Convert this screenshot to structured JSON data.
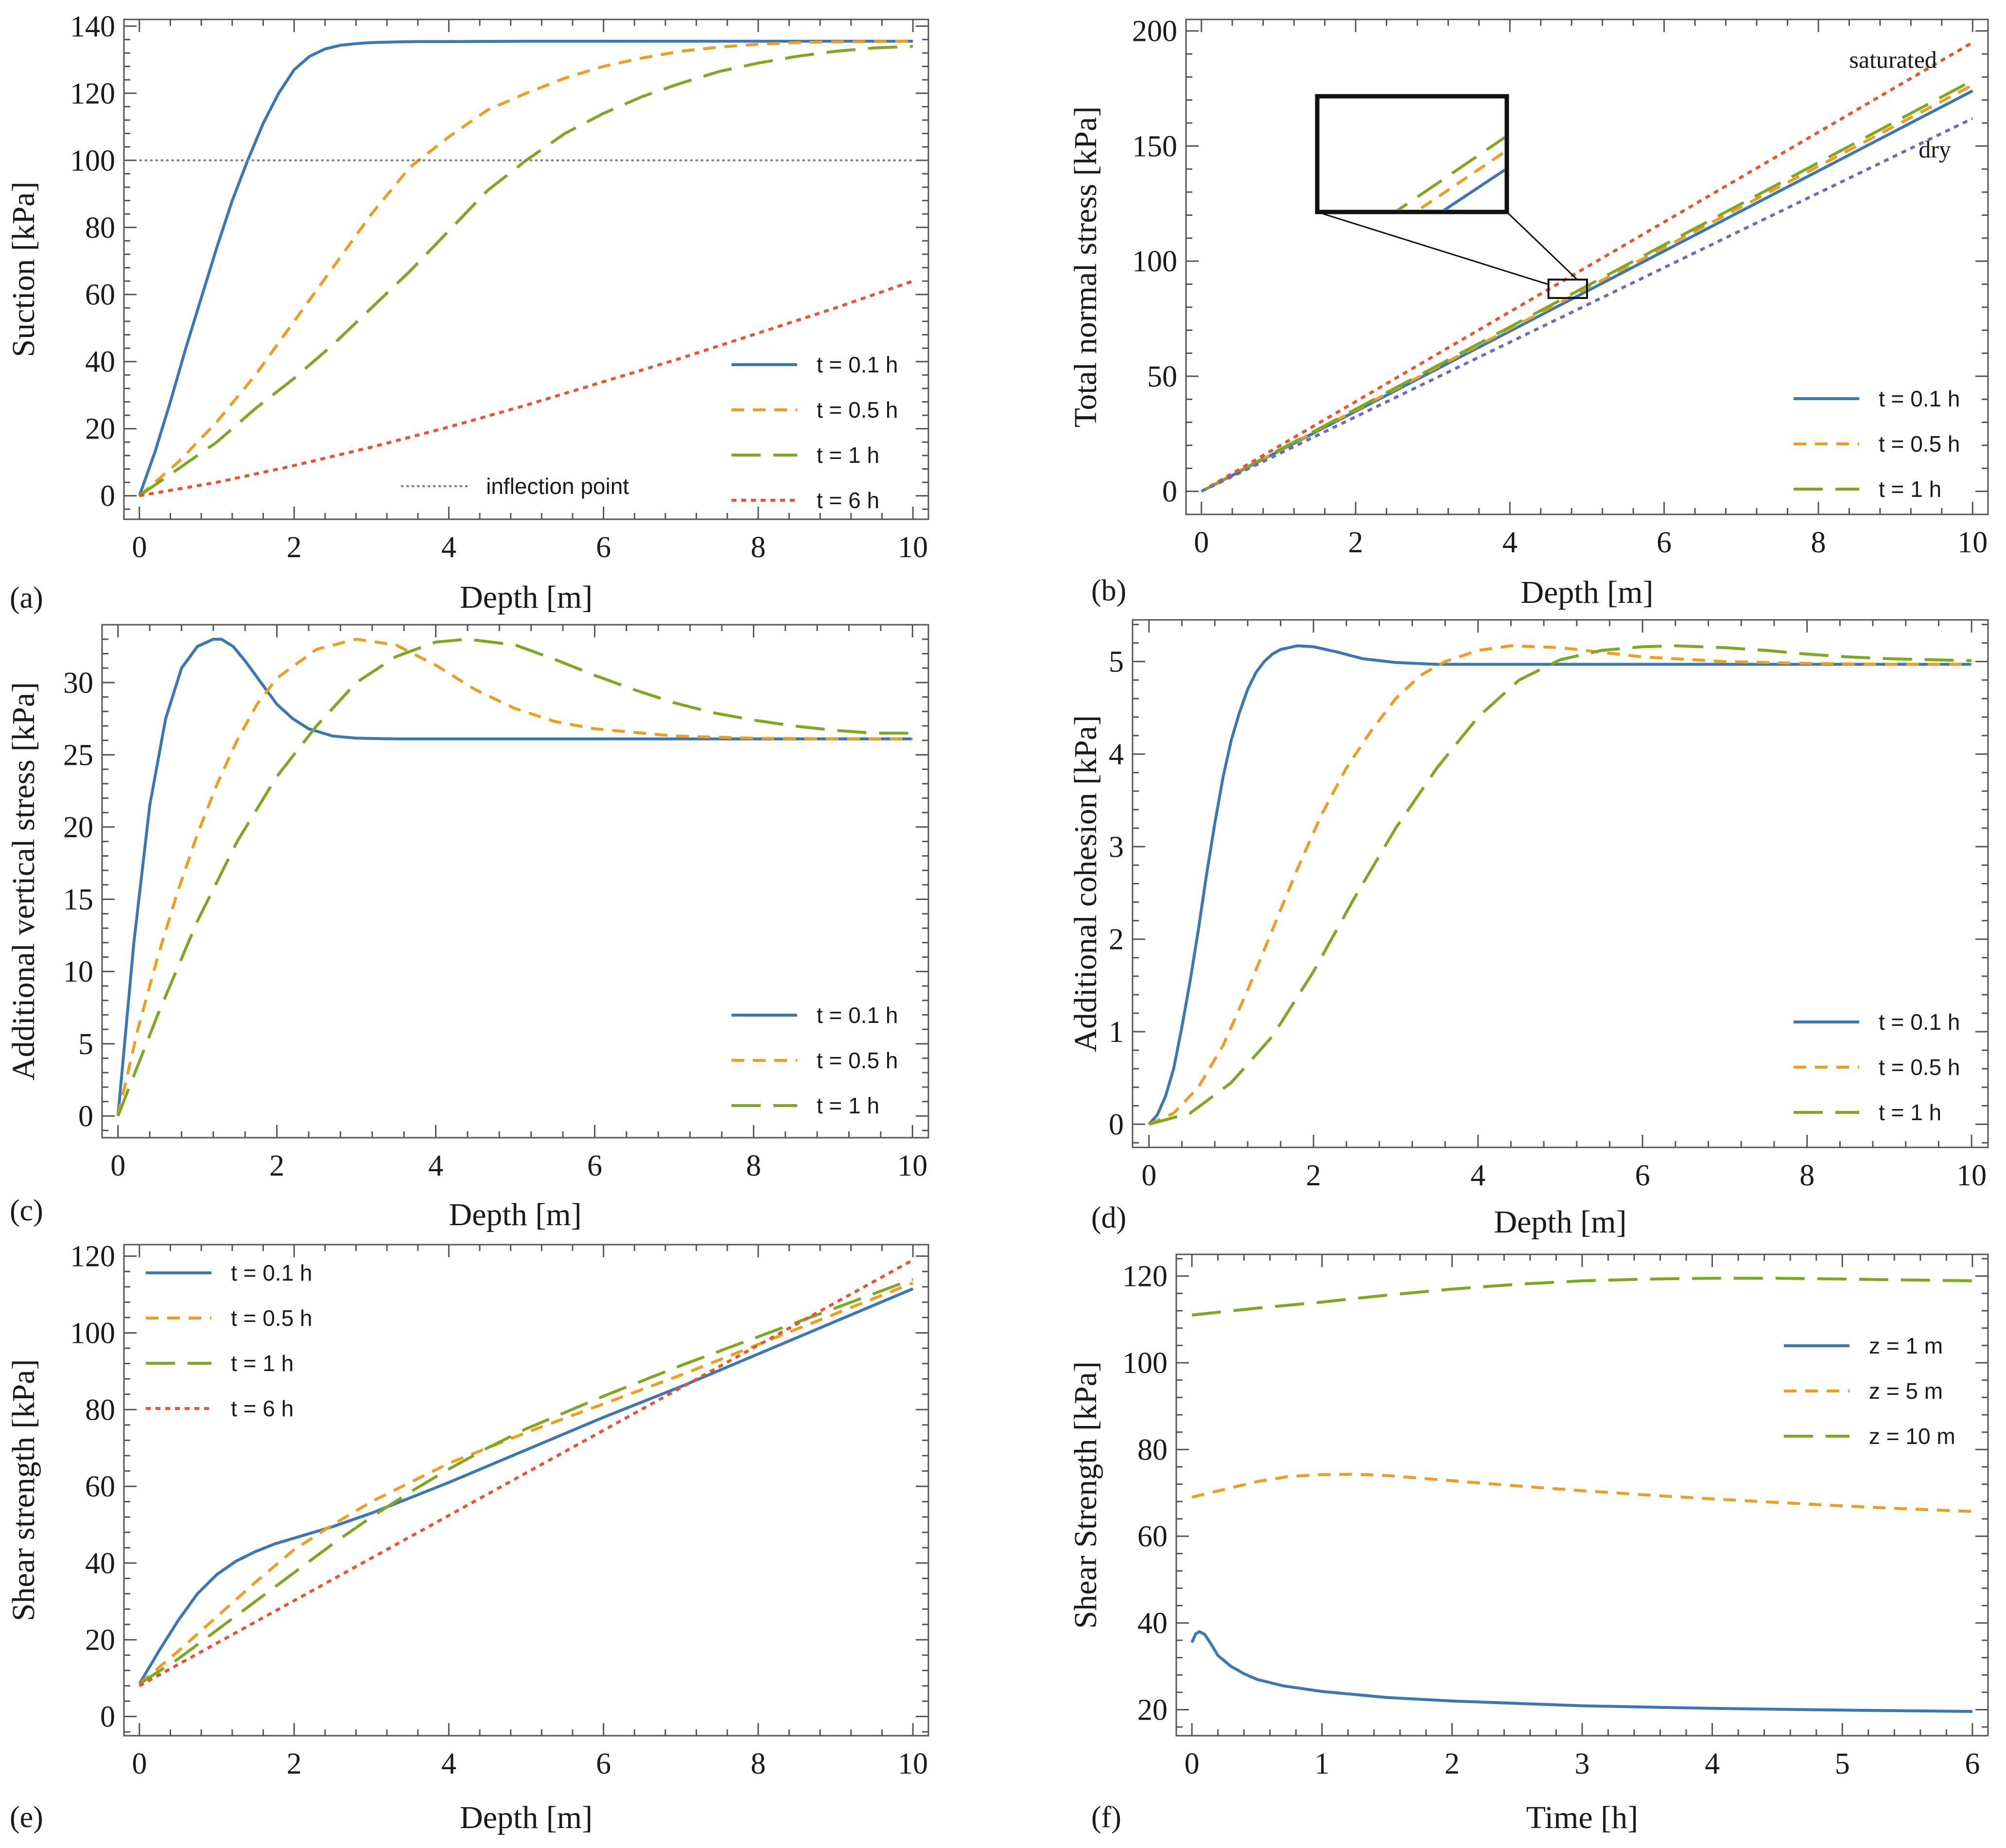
{
  "colors": {
    "blue": "#3a78b5",
    "orange": "#ef9d1e",
    "green": "#7ea81f",
    "red": "#f0502a",
    "gray": "#7b7b7b",
    "purple": "#6a6ac6"
  },
  "chart_data": [
    {
      "type": "line",
      "panel_label": "(a)",
      "xlabel": "Depth [m]",
      "ylabel": "Suction [kPa]",
      "xlim": [
        -0.2,
        10.2
      ],
      "ylim": [
        -7,
        142
      ],
      "xticks": [
        0,
        2,
        4,
        6,
        8,
        10
      ],
      "yticks": [
        0,
        20,
        40,
        60,
        80,
        100,
        120,
        140
      ],
      "legend_position": "bottom-right",
      "series": [
        {
          "name": "t = 0.1 h",
          "style": "solid",
          "color_key": "blue",
          "x": [
            0,
            0.2,
            0.4,
            0.6,
            0.8,
            1.0,
            1.2,
            1.4,
            1.6,
            1.8,
            2.0,
            2.2,
            2.4,
            2.6,
            2.8,
            3.0,
            3.3,
            3.6,
            4.0,
            5,
            6,
            7,
            8,
            9,
            10
          ],
          "y": [
            0,
            13,
            28,
            44,
            59,
            74,
            88,
            100,
            111,
            120,
            127,
            131,
            133.2,
            134.3,
            134.8,
            135.1,
            135.3,
            135.4,
            135.4,
            135.5,
            135.5,
            135.5,
            135.5,
            135.5,
            135.5
          ]
        },
        {
          "name": "t = 0.5 h",
          "style": "dash",
          "color_key": "orange",
          "x": [
            0,
            0.5,
            1.0,
            1.5,
            2.0,
            2.5,
            3.0,
            3.5,
            4.0,
            4.5,
            5.0,
            5.5,
            6.0,
            6.5,
            7.0,
            7.5,
            8.0,
            8.5,
            9.0,
            9.5,
            10
          ],
          "y": [
            0,
            10,
            22,
            36,
            52,
            68,
            84,
            98,
            107,
            115,
            120,
            124.5,
            128,
            130.5,
            132.5,
            133.8,
            134.6,
            135.1,
            135.3,
            135.4,
            135.5
          ]
        },
        {
          "name": "t = 1 h",
          "style": "longdash",
          "color_key": "green",
          "x": [
            0,
            0.5,
            1.0,
            1.5,
            2.0,
            2.5,
            3.0,
            3.5,
            4.0,
            4.5,
            5.0,
            5.5,
            6.0,
            6.5,
            7.0,
            7.5,
            8.0,
            8.5,
            9.0,
            9.5,
            10
          ],
          "y": [
            0,
            8,
            16,
            26,
            35,
            45,
            56,
            67,
            79,
            91,
            100,
            108,
            114,
            119,
            123,
            126.5,
            129,
            131,
            132.5,
            133.5,
            134
          ]
        },
        {
          "name": "t = 6 h",
          "style": "dot",
          "color_key": "red",
          "x": [
            0,
            1,
            2,
            3,
            4,
            5,
            6,
            7,
            8,
            9,
            10
          ],
          "y": [
            0,
            4,
            9,
            14.5,
            20.5,
            27,
            34,
            41,
            48.5,
            56,
            64
          ]
        },
        {
          "name": "inflection point",
          "style": "dotted-gray",
          "color_key": "gray",
          "x": [
            0,
            10
          ],
          "y": [
            100,
            100
          ]
        }
      ]
    },
    {
      "type": "line",
      "panel_label": "(b)",
      "xlabel": "Depth [m]",
      "ylabel": "Total normal stress [kPa]",
      "xlim": [
        -0.2,
        10.2
      ],
      "ylim": [
        -10,
        205
      ],
      "xticks": [
        0,
        2,
        4,
        6,
        8,
        10
      ],
      "yticks": [
        0,
        50,
        100,
        150,
        200
      ],
      "legend_position": "bottom-right",
      "annotations": [
        {
          "text": "saturated",
          "x": 8.4,
          "y": 184
        },
        {
          "text": "dry",
          "x": 9.3,
          "y": 145
        }
      ],
      "inset": {
        "x_range": [
          4.5,
          5.0
        ],
        "y_range": [
          84,
          92
        ]
      },
      "series": [
        {
          "name": "t = 0.1 h",
          "style": "solid",
          "color_key": "blue",
          "x": [
            0,
            10
          ],
          "y": [
            0,
            174
          ]
        },
        {
          "name": "t = 0.5 h",
          "style": "dash",
          "color_key": "orange",
          "x": [
            0,
            10
          ],
          "y": [
            0,
            176.5
          ]
        },
        {
          "name": "t = 1 h",
          "style": "longdash",
          "color_key": "green",
          "x": [
            0,
            10
          ],
          "y": [
            0,
            178.5
          ]
        },
        {
          "name": "saturated",
          "style": "dot",
          "color_key": "red",
          "x": [
            0,
            10
          ],
          "y": [
            0,
            195
          ]
        },
        {
          "name": "dry",
          "style": "dot",
          "color_key": "purple",
          "x": [
            0,
            10
          ],
          "y": [
            0,
            162
          ]
        }
      ]
    },
    {
      "type": "line",
      "panel_label": "(c)",
      "xlabel": "Depth [m]",
      "ylabel": "Additional vertical stress [kPa]",
      "xlim": [
        -0.2,
        10.2
      ],
      "ylim": [
        -1.5,
        34
      ],
      "xticks": [
        0,
        2,
        4,
        6,
        8,
        10
      ],
      "yticks": [
        0,
        5,
        10,
        15,
        20,
        25,
        30
      ],
      "legend_position": "bottom-right",
      "series": [
        {
          "name": "t = 0.1 h",
          "style": "solid",
          "color_key": "blue",
          "x": [
            0,
            0.2,
            0.4,
            0.6,
            0.8,
            1.0,
            1.2,
            1.3,
            1.45,
            1.6,
            1.8,
            2.0,
            2.2,
            2.4,
            2.7,
            3.0,
            3.5,
            4,
            5,
            6,
            7,
            8,
            9,
            10
          ],
          "y": [
            0,
            12,
            21.5,
            27.5,
            31,
            32.5,
            33,
            33,
            32.5,
            31.5,
            30,
            28.5,
            27.5,
            26.8,
            26.3,
            26.15,
            26.1,
            26.1,
            26.1,
            26.1,
            26.1,
            26.1,
            26.1,
            26.1
          ]
        },
        {
          "name": "t = 0.5 h",
          "style": "dash",
          "color_key": "orange",
          "x": [
            0,
            0.25,
            0.5,
            0.75,
            1.0,
            1.25,
            1.5,
            1.75,
            2.0,
            2.5,
            3.0,
            3.5,
            4.0,
            4.5,
            5.0,
            5.5,
            6.0,
            7.0,
            8.0,
            9.0,
            10
          ],
          "y": [
            0,
            6,
            11,
            15.5,
            19.5,
            23,
            26,
            28.5,
            30.3,
            32.3,
            33,
            32.6,
            31.2,
            29.5,
            28.2,
            27.3,
            26.8,
            26.3,
            26.15,
            26.1,
            26.1
          ]
        },
        {
          "name": "t = 1 h",
          "style": "longdash",
          "color_key": "green",
          "x": [
            0,
            0.5,
            1.0,
            1.5,
            2.0,
            2.5,
            3.0,
            3.5,
            4.0,
            4.4,
            5.0,
            5.5,
            6.0,
            6.5,
            7.0,
            7.5,
            8.0,
            8.5,
            9.0,
            9.5,
            10
          ],
          "y": [
            0,
            7,
            13.5,
            19,
            23.5,
            27,
            30,
            31.8,
            32.8,
            33,
            32.6,
            31.6,
            30.5,
            29.5,
            28.6,
            27.9,
            27.4,
            27,
            26.7,
            26.5,
            26.5
          ]
        }
      ]
    },
    {
      "type": "line",
      "panel_label": "(d)",
      "xlabel": "Depth [m]",
      "ylabel": "Additional cohesion [kPa]",
      "xlim": [
        -0.2,
        10.2
      ],
      "ylim": [
        -0.25,
        5.45
      ],
      "xticks": [
        0,
        2,
        4,
        6,
        8,
        10
      ],
      "yticks": [
        0,
        1,
        2,
        3,
        4,
        5
      ],
      "legend_position": "bottom-right",
      "series": [
        {
          "name": "t = 0.1 h",
          "style": "solid",
          "color_key": "blue",
          "x": [
            0,
            0.1,
            0.2,
            0.3,
            0.4,
            0.5,
            0.6,
            0.7,
            0.8,
            0.9,
            1.0,
            1.1,
            1.2,
            1.3,
            1.4,
            1.5,
            1.6,
            1.8,
            2.0,
            2.3,
            2.6,
            3.0,
            3.5,
            4,
            5,
            6,
            7,
            8,
            9,
            10
          ],
          "y": [
            0,
            0.1,
            0.3,
            0.6,
            1.05,
            1.55,
            2.1,
            2.7,
            3.25,
            3.75,
            4.15,
            4.45,
            4.7,
            4.88,
            5.0,
            5.08,
            5.13,
            5.17,
            5.16,
            5.1,
            5.03,
            4.99,
            4.97,
            4.97,
            4.97,
            4.97,
            4.97,
            4.97,
            4.97,
            4.97
          ]
        },
        {
          "name": "t = 0.5 h",
          "style": "dash",
          "color_key": "orange",
          "x": [
            0,
            0.3,
            0.6,
            0.9,
            1.2,
            1.5,
            1.8,
            2.1,
            2.4,
            2.7,
            3.0,
            3.3,
            3.6,
            4.0,
            4.4,
            5.0,
            5.5,
            6.0,
            7.0,
            8.0,
            9.0,
            10
          ],
          "y": [
            0,
            0.12,
            0.4,
            0.85,
            1.45,
            2.1,
            2.75,
            3.35,
            3.85,
            4.25,
            4.6,
            4.85,
            5.0,
            5.12,
            5.17,
            5.15,
            5.1,
            5.05,
            5.0,
            4.98,
            4.97,
            4.97
          ]
        },
        {
          "name": "t = 1 h",
          "style": "longdash",
          "color_key": "green",
          "x": [
            0,
            0.5,
            1.0,
            1.5,
            2.0,
            2.5,
            3.0,
            3.5,
            4.0,
            4.5,
            5.0,
            5.5,
            6.0,
            6.4,
            7.0,
            7.5,
            8.0,
            8.5,
            9.0,
            9.5,
            10
          ],
          "y": [
            0,
            0.12,
            0.45,
            0.95,
            1.65,
            2.45,
            3.2,
            3.85,
            4.4,
            4.8,
            5.02,
            5.12,
            5.16,
            5.17,
            5.15,
            5.12,
            5.08,
            5.05,
            5.03,
            5.02,
            5.01
          ]
        }
      ]
    },
    {
      "type": "line",
      "panel_label": "(e)",
      "xlabel": "Depth [m]",
      "ylabel": "Shear strength [kPa]",
      "xlim": [
        -0.2,
        10.2
      ],
      "ylim": [
        -5,
        123
      ],
      "xticks": [
        0,
        2,
        4,
        6,
        8,
        10
      ],
      "yticks": [
        0,
        20,
        40,
        60,
        80,
        100,
        120
      ],
      "legend_position": "top-left",
      "series": [
        {
          "name": "t = 0.1 h",
          "style": "solid",
          "color_key": "blue",
          "x": [
            0,
            0.25,
            0.5,
            0.75,
            1.0,
            1.25,
            1.5,
            1.75,
            2.0,
            2.5,
            3.0,
            4,
            5,
            6,
            7,
            8,
            9,
            10
          ],
          "y": [
            8.5,
            17,
            25,
            32,
            37,
            40.5,
            43,
            45,
            46.5,
            49.5,
            53,
            61,
            69.5,
            78,
            86,
            94.5,
            103,
            111.5
          ]
        },
        {
          "name": "t = 0.5 h",
          "style": "dash",
          "color_key": "orange",
          "x": [
            0,
            0.5,
            1.0,
            1.5,
            2.0,
            2.5,
            3.0,
            3.5,
            4.0,
            5,
            6,
            7,
            8,
            9,
            10
          ],
          "y": [
            8.5,
            17,
            26,
            35,
            43.5,
            50,
            56,
            61,
            66,
            74,
            81.5,
            89,
            97,
            105,
            113
          ]
        },
        {
          "name": "t = 1 h",
          "style": "longdash",
          "color_key": "green",
          "x": [
            0,
            0.5,
            1.0,
            1.5,
            2.0,
            2.5,
            3.0,
            3.5,
            4.0,
            4.5,
            5.0,
            6,
            7,
            8,
            9,
            10
          ],
          "y": [
            8.5,
            15,
            22.5,
            30,
            37.5,
            45,
            52,
            58.5,
            64.5,
            70,
            75,
            83.5,
            91.5,
            99,
            106.5,
            114
          ]
        },
        {
          "name": "t = 6 h",
          "style": "dot",
          "color_key": "red",
          "x": [
            0,
            10
          ],
          "y": [
            8,
            119
          ]
        }
      ]
    },
    {
      "type": "line",
      "panel_label": "(f)",
      "xlabel": "Time [h]",
      "ylabel": "Shear Strength [kPa]",
      "xlim": [
        -0.12,
        6.12
      ],
      "ylim": [
        14,
        125
      ],
      "xticks": [
        0,
        1,
        2,
        3,
        4,
        5,
        6
      ],
      "yticks": [
        20,
        40,
        60,
        80,
        100,
        120
      ],
      "legend_position": "top-right",
      "series": [
        {
          "name": "z = 1 m",
          "style": "solid",
          "color_key": "blue",
          "x": [
            0,
            0.03,
            0.06,
            0.1,
            0.15,
            0.2,
            0.3,
            0.4,
            0.5,
            0.7,
            1.0,
            1.5,
            2,
            3,
            4,
            5,
            6
          ],
          "y": [
            35.5,
            37.5,
            38,
            37.3,
            35,
            32.5,
            30,
            28.3,
            27,
            25.5,
            24.2,
            22.8,
            22,
            20.9,
            20.3,
            19.9,
            19.6
          ]
        },
        {
          "name": "z = 5 m",
          "style": "dash",
          "color_key": "orange",
          "x": [
            0,
            0.25,
            0.5,
            0.75,
            1.0,
            1.25,
            1.5,
            2,
            2.5,
            3,
            3.5,
            4,
            4.5,
            5,
            5.5,
            6
          ],
          "y": [
            69,
            70.8,
            72.6,
            73.8,
            74.2,
            74.3,
            74,
            72.8,
            71.6,
            70.5,
            69.5,
            68.6,
            67.8,
            67,
            66.3,
            65.7
          ]
        },
        {
          "name": "z = 10 m",
          "style": "longdash",
          "color_key": "green",
          "x": [
            0,
            0.5,
            1,
            1.5,
            2,
            2.5,
            3,
            3.5,
            4,
            4.5,
            5,
            5.5,
            6
          ],
          "y": [
            111,
            112.6,
            114,
            115.6,
            117,
            118.1,
            118.9,
            119.3,
            119.5,
            119.5,
            119.3,
            119.1,
            118.9
          ]
        }
      ]
    }
  ]
}
